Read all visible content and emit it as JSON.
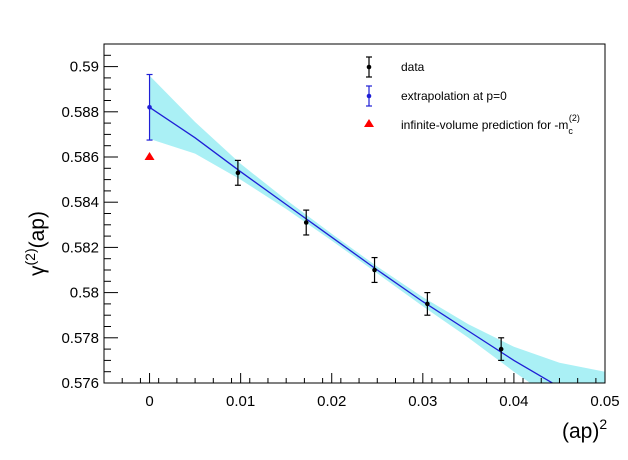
{
  "chart_data": {
    "type": "scatter",
    "xlabel": "(ap)",
    "xlabel_sup": "2",
    "ylabel": "γ",
    "ylabel_sup": "(2)",
    "ylabel_tail": "(ap)",
    "xlim": [
      -0.005,
      0.05
    ],
    "ylim": [
      0.576,
      0.591
    ],
    "x_ticks": [
      0,
      0.01,
      0.02,
      0.03,
      0.04,
      0.05
    ],
    "x_tick_labels": [
      "0",
      "0.01",
      "0.02",
      "0.03",
      "0.04",
      "0.05"
    ],
    "y_ticks": [
      0.576,
      0.578,
      0.58,
      0.582,
      0.584,
      0.586,
      0.588,
      0.59
    ],
    "y_tick_labels": [
      "0.576",
      "0.578",
      "0.58",
      "0.582",
      "0.584",
      "0.586",
      "0.588",
      "0.59"
    ],
    "grid": false,
    "legend_position": "top-right",
    "series": [
      {
        "name": "data",
        "color": "#000000",
        "marker": "circle",
        "points": [
          {
            "x": 0.0097,
            "y": 0.5853,
            "err": 0.00055
          },
          {
            "x": 0.0172,
            "y": 0.5831,
            "err": 0.00055
          },
          {
            "x": 0.0247,
            "y": 0.581,
            "err": 0.00055
          },
          {
            "x": 0.0305,
            "y": 0.5795,
            "err": 0.0005
          },
          {
            "x": 0.0386,
            "y": 0.5775,
            "err": 0.0005
          }
        ]
      },
      {
        "name": "extrapolation at p=0",
        "color": "#1f1fd6",
        "marker": "circle",
        "points": [
          {
            "x": 0.0,
            "y": 0.5882,
            "err": 0.00145
          }
        ]
      },
      {
        "name": "infinite-volume prediction for -m",
        "name_sub": "c",
        "name_sup": "(2)",
        "color": "#ff0000",
        "marker": "triangle",
        "points": [
          {
            "x": 0.0,
            "y": 0.586
          }
        ]
      }
    ],
    "fit": {
      "color": "#1f1fd6",
      "band_color": "#aaf0f5",
      "curve": [
        {
          "x": 0.0,
          "y": 0.5882
        },
        {
          "x": 0.005,
          "y": 0.58685
        },
        {
          "x": 0.01,
          "y": 0.58535
        },
        {
          "x": 0.015,
          "y": 0.5839
        },
        {
          "x": 0.02,
          "y": 0.58245
        },
        {
          "x": 0.025,
          "y": 0.581
        },
        {
          "x": 0.03,
          "y": 0.5796
        },
        {
          "x": 0.035,
          "y": 0.5783
        },
        {
          "x": 0.04,
          "y": 0.577
        },
        {
          "x": 0.0455,
          "y": 0.5757
        }
      ],
      "band_upper": [
        {
          "x": 0.0,
          "y": 0.5896
        },
        {
          "x": 0.005,
          "y": 0.58755
        },
        {
          "x": 0.01,
          "y": 0.5857
        },
        {
          "x": 0.015,
          "y": 0.5841
        },
        {
          "x": 0.02,
          "y": 0.5826
        },
        {
          "x": 0.025,
          "y": 0.58115
        },
        {
          "x": 0.03,
          "y": 0.5798
        },
        {
          "x": 0.035,
          "y": 0.5786
        },
        {
          "x": 0.04,
          "y": 0.5776
        },
        {
          "x": 0.045,
          "y": 0.5769
        },
        {
          "x": 0.05,
          "y": 0.5765
        }
      ],
      "band_lower": [
        {
          "x": 0.0,
          "y": 0.5868
        },
        {
          "x": 0.005,
          "y": 0.58615
        },
        {
          "x": 0.01,
          "y": 0.585
        },
        {
          "x": 0.015,
          "y": 0.5837
        },
        {
          "x": 0.02,
          "y": 0.5823
        },
        {
          "x": 0.025,
          "y": 0.58085
        },
        {
          "x": 0.03,
          "y": 0.5794
        },
        {
          "x": 0.035,
          "y": 0.578
        },
        {
          "x": 0.04,
          "y": 0.5765
        },
        {
          "x": 0.045,
          "y": 0.5751
        },
        {
          "x": 0.05,
          "y": 0.5738
        }
      ]
    }
  }
}
